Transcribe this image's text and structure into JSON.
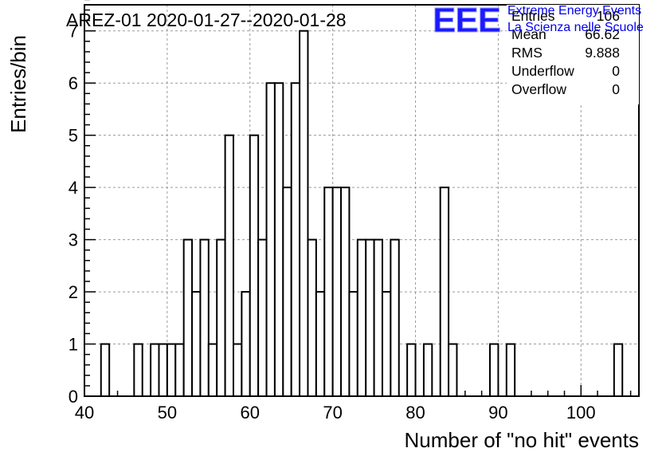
{
  "chart_data": {
    "type": "bar",
    "title": "AREZ-01 2020-01-27--2020-01-28",
    "xlabel": "Number of \"no hit\" events",
    "ylabel": "Entries/bin",
    "xlim": [
      40,
      107
    ],
    "ylim": [
      0,
      7.5
    ],
    "bin_width": 1,
    "x_ticks": [
      40,
      50,
      60,
      70,
      80,
      90,
      100
    ],
    "y_ticks": [
      0,
      1,
      2,
      3,
      4,
      5,
      6,
      7
    ],
    "grid": true,
    "bins": [
      {
        "x": 42,
        "value": 1
      },
      {
        "x": 46,
        "value": 1
      },
      {
        "x": 48,
        "value": 1
      },
      {
        "x": 49,
        "value": 1
      },
      {
        "x": 50,
        "value": 1
      },
      {
        "x": 51,
        "value": 1
      },
      {
        "x": 52,
        "value": 3
      },
      {
        "x": 53,
        "value": 2
      },
      {
        "x": 54,
        "value": 3
      },
      {
        "x": 55,
        "value": 1
      },
      {
        "x": 56,
        "value": 3
      },
      {
        "x": 57,
        "value": 5
      },
      {
        "x": 58,
        "value": 1
      },
      {
        "x": 59,
        "value": 2
      },
      {
        "x": 60,
        "value": 5
      },
      {
        "x": 61,
        "value": 3
      },
      {
        "x": 62,
        "value": 6
      },
      {
        "x": 63,
        "value": 6
      },
      {
        "x": 64,
        "value": 4
      },
      {
        "x": 65,
        "value": 6
      },
      {
        "x": 66,
        "value": 7
      },
      {
        "x": 67,
        "value": 3
      },
      {
        "x": 68,
        "value": 2
      },
      {
        "x": 69,
        "value": 4
      },
      {
        "x": 70,
        "value": 4
      },
      {
        "x": 71,
        "value": 4
      },
      {
        "x": 72,
        "value": 2
      },
      {
        "x": 73,
        "value": 3
      },
      {
        "x": 74,
        "value": 3
      },
      {
        "x": 75,
        "value": 3
      },
      {
        "x": 76,
        "value": 2
      },
      {
        "x": 77,
        "value": 3
      },
      {
        "x": 79,
        "value": 1
      },
      {
        "x": 81,
        "value": 1
      },
      {
        "x": 83,
        "value": 4
      },
      {
        "x": 84,
        "value": 1
      },
      {
        "x": 89,
        "value": 1
      },
      {
        "x": 91,
        "value": 1
      },
      {
        "x": 104,
        "value": 1
      }
    ],
    "stats": [
      {
        "label": "Entries",
        "value": "106"
      },
      {
        "label": "Mean",
        "value": "66.62"
      },
      {
        "label": "RMS",
        "value": "9.888"
      },
      {
        "label": "Underflow",
        "value": "0"
      },
      {
        "label": "Overflow",
        "value": "0"
      }
    ],
    "stats_placement": "top-right"
  },
  "logo": {
    "mark": "EEE",
    "line1": "Extreme Energy Events",
    "line2": "La Scienza nelle Scuole",
    "color": "#0000ee"
  }
}
